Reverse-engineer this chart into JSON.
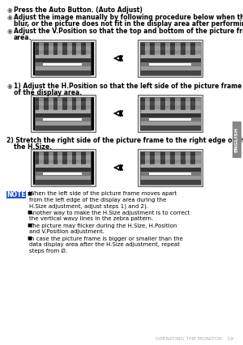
{
  "bg_color": "#ffffff",
  "footer_text": "OPERATING THE MONITOR   19",
  "english_sidebar": "ENGLISH",
  "note_bg": "#2255cc",
  "note_text": "#ffffff",
  "bullet_sym": "◉",
  "line1_bold": "Press the Auto Button. (Auto Adjust)",
  "line2_bold": "Adjust the image manually by following procedure below when the screen has a flicker or",
  "line2_normal": "blur, or the picture does not fit in the display area after performing the Auto Adjust.",
  "line3_bold": "Adjust the V.Position so that the top and bottom of the picture frame will fit to the display",
  "line3_normal": "area.",
  "step1_sym": "◉",
  "step1_bold": "1) Adjust the H.Position so that the left side of the picture frame will move to the left edge",
  "step1_normal": "of the display area.",
  "step2_bold": "2) Stretch the right side of the picture frame to the right edge of the display area by adjusting",
  "step2_normal": "the H.Size.",
  "note_items": [
    "When the left side of the picture frame moves apart from the left edge of the display area during the H.Size adjustment, adjust steps 1) and 2).",
    "Another way to make the H.Size adjustment is to correct the vertical wavy lines in the zebra pattern.",
    "The picture may flicker during the H.Size, H.Position and V.Position adjustment.",
    "In case the picture frame is bigger or smaller than the data display area after the H.Size adjustment, repeat steps from Ø."
  ]
}
